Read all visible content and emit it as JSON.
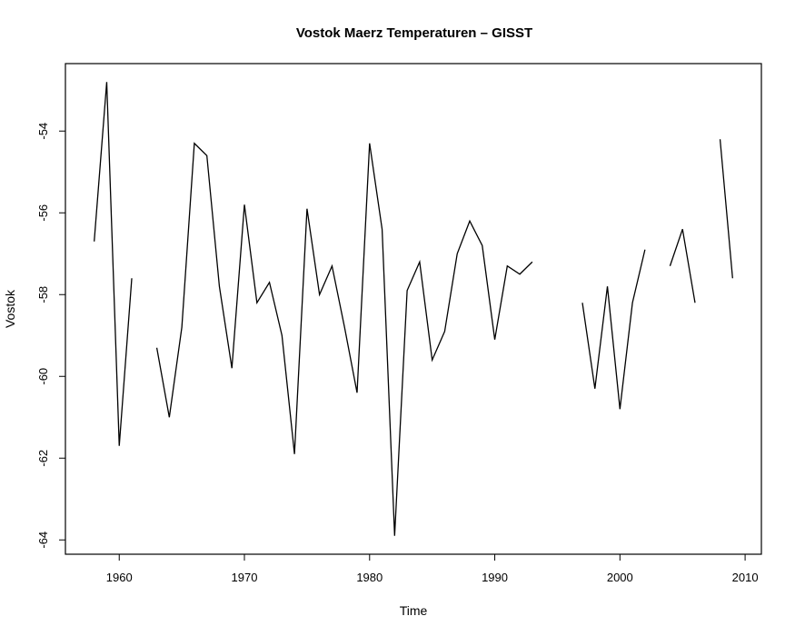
{
  "chart_data": {
    "type": "line",
    "title": "Vostok Maerz Temperaturen – GISST",
    "xlabel": "Time",
    "ylabel": "Vostok",
    "xlim": [
      1955.7,
      2011.3
    ],
    "ylim": [
      -64.35,
      -52.35
    ],
    "xticks": [
      1960,
      1970,
      1980,
      1990,
      2000,
      2010
    ],
    "yticks": [
      -64,
      -62,
      -60,
      -58,
      -56,
      -54
    ],
    "series": [
      {
        "name": "Vostok",
        "x": [
          1958,
          1959,
          1960,
          1961,
          1962,
          1963,
          1964,
          1965,
          1966,
          1967,
          1968,
          1969,
          1970,
          1971,
          1972,
          1973,
          1974,
          1975,
          1976,
          1977,
          1978,
          1979,
          1980,
          1981,
          1982,
          1983,
          1984,
          1985,
          1986,
          1987,
          1988,
          1989,
          1990,
          1991,
          1992,
          1993,
          1994,
          1995,
          1996,
          1997,
          1998,
          1999,
          2000,
          2001,
          2002,
          2003,
          2004,
          2005,
          2006,
          2007,
          2008,
          2009
        ],
        "values": [
          -56.7,
          -52.8,
          -61.7,
          -57.6,
          null,
          -59.3,
          -61.0,
          -58.8,
          -54.3,
          -54.6,
          -57.8,
          -59.8,
          -55.8,
          -58.2,
          -57.7,
          -59.0,
          -61.9,
          -55.9,
          -58.0,
          -57.3,
          -58.8,
          -60.4,
          -54.3,
          -56.4,
          -63.9,
          -57.9,
          -57.2,
          -59.6,
          -58.9,
          -57.0,
          -56.2,
          -56.8,
          -59.1,
          -57.3,
          -57.5,
          -57.2,
          null,
          null,
          null,
          -58.2,
          -60.3,
          -57.8,
          -60.8,
          -58.2,
          -56.9,
          null,
          -57.3,
          -56.4,
          -58.2,
          null,
          -54.2,
          -57.6
        ]
      }
    ]
  }
}
